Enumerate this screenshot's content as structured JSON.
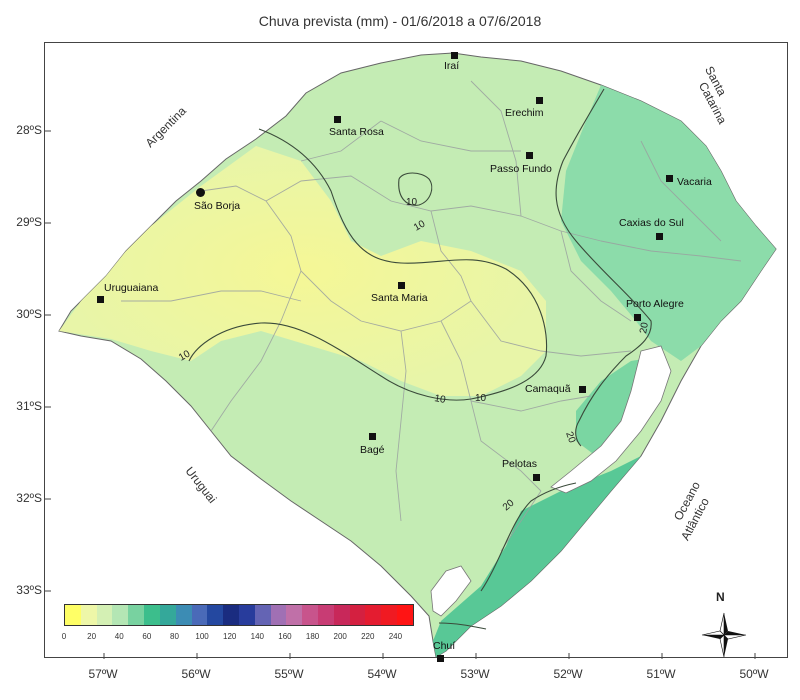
{
  "title": "Chuva prevista (mm) - 01/6/2018 a 07/6/2018",
  "lat_ticks": [
    "28ºS",
    "29ºS",
    "30ºS",
    "31ºS",
    "32ºS",
    "33ºS"
  ],
  "lon_ticks": [
    "57ºW",
    "56ºW",
    "55ºW",
    "54ºW",
    "53ºW",
    "52ºW",
    "51ºW",
    "50ºW"
  ],
  "cities": [
    "Iraí",
    "Erechim",
    "Santa Rosa",
    "Passo Fundo",
    "Vacaria",
    "São Borja",
    "Caxias do Sul",
    "Santa Maria",
    "Uruguaiana",
    "Porto Alegre",
    "Camaquã",
    "Bagé",
    "Pelotas",
    "Chuí"
  ],
  "regions": {
    "argentina": "Argentina",
    "santa_catarina_1": "Santa",
    "santa_catarina_2": "Catarina",
    "uruguai": "Uruguai",
    "oceano_1": "Oceano",
    "oceano_2": "Atlântico"
  },
  "contour_labels": [
    "10",
    "10",
    "10",
    "10",
    "10",
    "20",
    "20",
    "20"
  ],
  "legend": {
    "ticks": [
      "0",
      "20",
      "40",
      "60",
      "80",
      "100",
      "120",
      "140",
      "160",
      "180",
      "200",
      "220",
      "240"
    ],
    "colors": [
      "#ffff66",
      "#eef7a8",
      "#d4f0b4",
      "#b4e6b4",
      "#78d2a0",
      "#3cbe8c",
      "#34a89a",
      "#3c8cb4",
      "#4a6ab8",
      "#2448a0",
      "#1a2c80",
      "#283c9c",
      "#6464b4",
      "#a070b4",
      "#c070a8",
      "#c8548c",
      "#c83c74",
      "#c8285a",
      "#d42040",
      "#e41c30",
      "#f01a22",
      "#ff1414"
    ]
  },
  "north_label": "N"
}
